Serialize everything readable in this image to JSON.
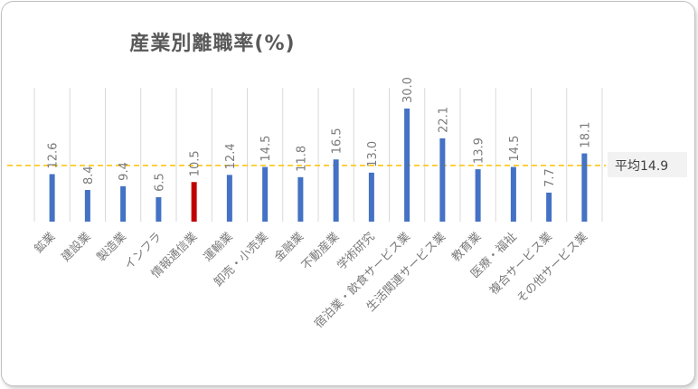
{
  "chart_data": {
    "type": "bar",
    "title": "産業別離職率(%)",
    "categories": [
      "鉱業",
      "建設業",
      "製造業",
      "インフラ",
      "情報通信業",
      "運輸業",
      "卸売・小売業",
      "金融業",
      "不動産業",
      "学術研究",
      "宿泊業・飲食サービス業",
      "生活関連サービス業",
      "教育業",
      "医療・福祉",
      "複合サービス業",
      "その他サービス業"
    ],
    "values": [
      12.6,
      8.4,
      9.4,
      6.5,
      10.5,
      12.4,
      14.5,
      11.8,
      16.5,
      13.0,
      30.0,
      22.1,
      13.9,
      14.5,
      7.7,
      18.1
    ],
    "value_labels": [
      "12.6",
      "8.4",
      "9.4",
      "6.5",
      "10.5",
      "12.4",
      "14.5",
      "11.8",
      "16.5",
      "13.0",
      "30.0",
      "22.1",
      "13.9",
      "14.5",
      "7.7",
      "18.1"
    ],
    "highlight_index": 4,
    "average": 14.9,
    "average_label": "平均14.9",
    "ylim": [
      0,
      30
    ],
    "grid": "vertical",
    "colors": {
      "bar": "#4472c4",
      "highlight": "#c00000",
      "average_line": "#ffc000",
      "grid": "#d9d9d9"
    }
  }
}
